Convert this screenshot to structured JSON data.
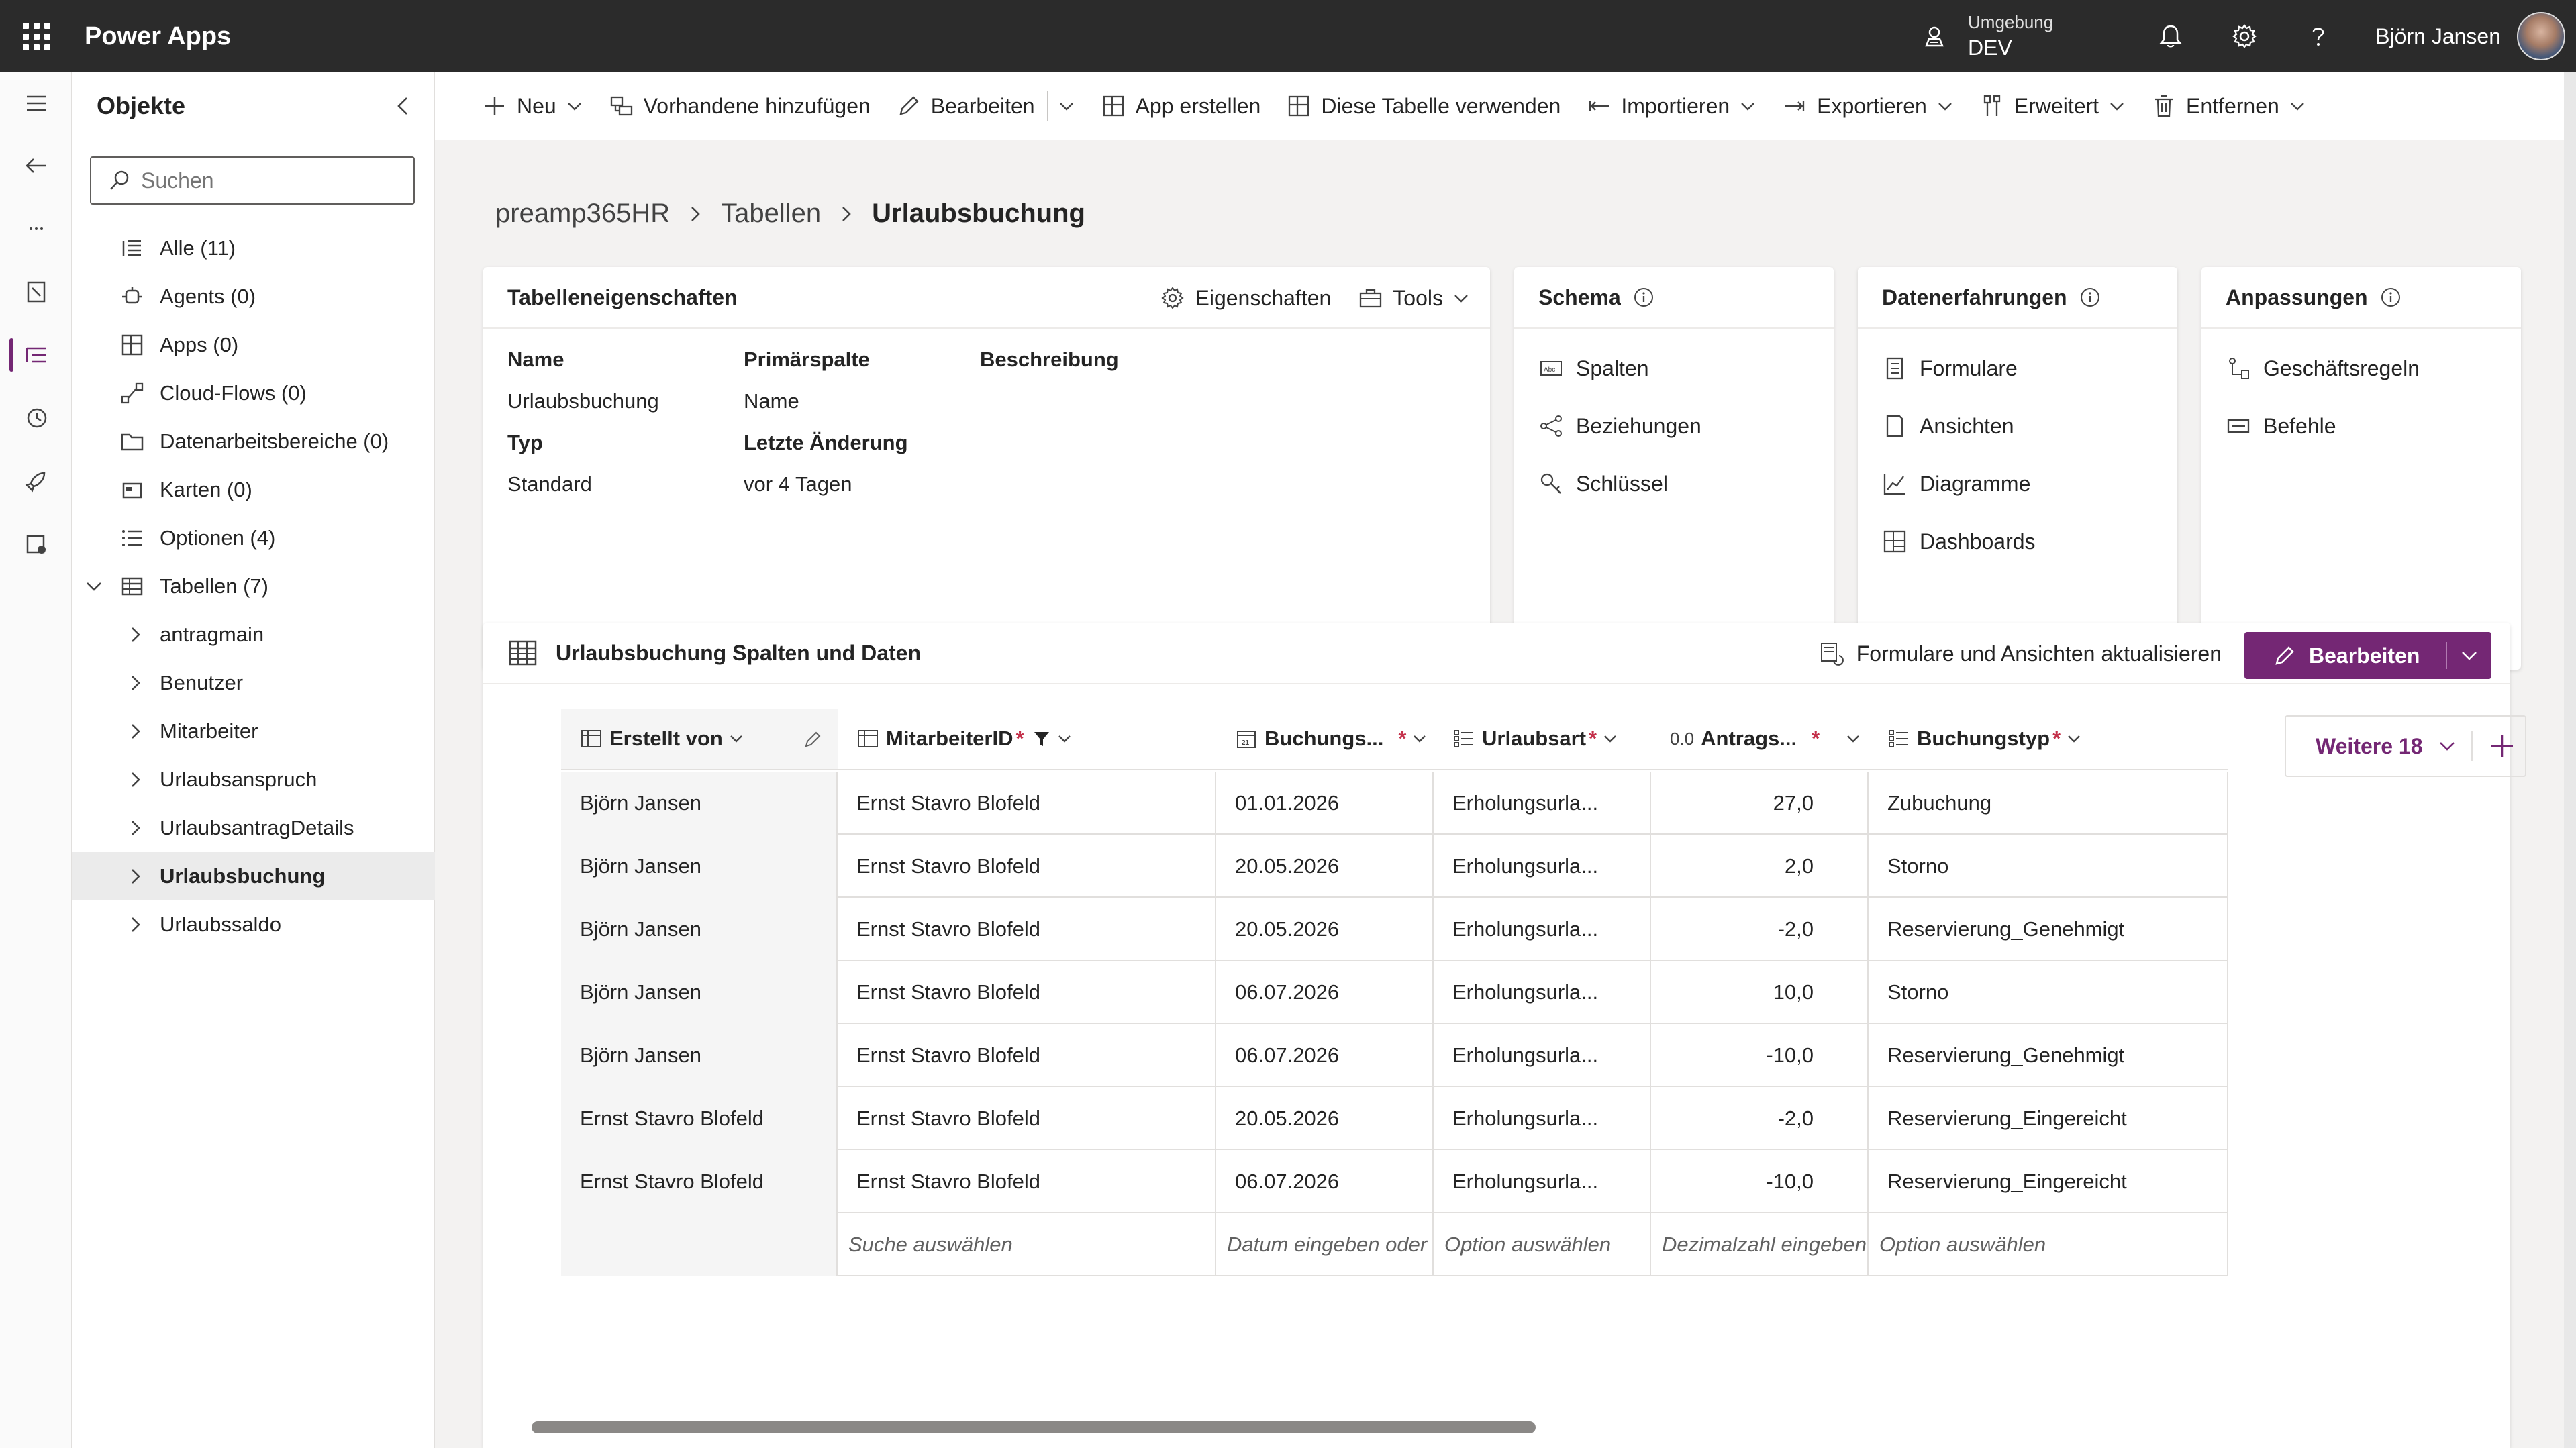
{
  "topbar": {
    "app_name": "Power Apps",
    "environment_label": "Umgebung",
    "environment_value": "DEV",
    "user_name": "Björn Jansen"
  },
  "objects_panel": {
    "title": "Objekte",
    "search_placeholder": "Suchen",
    "items": [
      {
        "label": "Alle (11)",
        "icon": "list-icon"
      },
      {
        "label": "Agents (0)",
        "icon": "agent-icon"
      },
      {
        "label": "Apps (0)",
        "icon": "apps-icon"
      },
      {
        "label": "Cloud-Flows (0)",
        "icon": "flow-icon"
      },
      {
        "label": "Datenarbeitsbereiche (0)",
        "icon": "folder-icon"
      },
      {
        "label": "Karten (0)",
        "icon": "card-icon"
      },
      {
        "label": "Optionen (4)",
        "icon": "options-icon"
      },
      {
        "label": "Tabellen (7)",
        "icon": "table-icon"
      }
    ],
    "tables": [
      "antragmain",
      "Benutzer",
      "Mitarbeiter",
      "Urlaubsanspruch",
      "UrlaubsantragDetails",
      "Urlaubsbuchung",
      "Urlaubssaldo"
    ],
    "selected_table": "Urlaubsbuchung"
  },
  "commandbar": {
    "new": "Neu",
    "add_existing": "Vorhandene hinzufügen",
    "edit": "Bearbeiten",
    "create_app": "App erstellen",
    "use_table": "Diese Tabelle verwenden",
    "import": "Importieren",
    "export": "Exportieren",
    "advanced": "Erweitert",
    "remove": "Entfernen"
  },
  "breadcrumb": {
    "root": "preamp365HR",
    "level1": "Tabellen",
    "current": "Urlaubsbuchung"
  },
  "properties": {
    "title": "Tabelleneigenschaften",
    "properties_action": "Eigenschaften",
    "tools_action": "Tools",
    "name_label": "Name",
    "name_value": "Urlaubsbuchung",
    "primary_label": "Primärspalte",
    "primary_value": "Name",
    "description_label": "Beschreibung",
    "type_label": "Typ",
    "type_value": "Standard",
    "modified_label": "Letzte Änderung",
    "modified_value": "vor 4 Tagen"
  },
  "schema": {
    "title": "Schema",
    "links": [
      "Spalten",
      "Beziehungen",
      "Schlüssel"
    ]
  },
  "data_experiences": {
    "title": "Datenerfahrungen",
    "links": [
      "Formulare",
      "Ansichten",
      "Diagramme",
      "Dashboards"
    ]
  },
  "customizations": {
    "title": "Anpassungen",
    "links": [
      "Geschäftsregeln",
      "Befehle"
    ]
  },
  "data_section": {
    "title": "Urlaubsbuchung Spalten und Daten",
    "refresh": "Formulare und Ansichten aktualisieren",
    "edit_button": "Bearbeiten",
    "more_columns": "Weitere 18",
    "columns": [
      {
        "label": "Erstellt von",
        "required": ""
      },
      {
        "label": "MitarbeiterID",
        "required": "*"
      },
      {
        "label": "Buchungs...",
        "required": "*"
      },
      {
        "label": "Urlaubsart",
        "required": "*"
      },
      {
        "label": "Antrags...",
        "required": "*"
      },
      {
        "label": "Buchungstyp",
        "required": "*"
      }
    ],
    "rows": [
      [
        "Björn Jansen",
        "Ernst Stavro Blofeld",
        "01.01.2026",
        "Erholungsurla...",
        "27,0",
        "Zubuchung"
      ],
      [
        "Björn Jansen",
        "Ernst Stavro Blofeld",
        "20.05.2026",
        "Erholungsurla...",
        "2,0",
        "Storno"
      ],
      [
        "Björn Jansen",
        "Ernst Stavro Blofeld",
        "20.05.2026",
        "Erholungsurla...",
        "-2,0",
        "Reservierung_Genehmigt"
      ],
      [
        "Björn Jansen",
        "Ernst Stavro Blofeld",
        "06.07.2026",
        "Erholungsurla...",
        "10,0",
        "Storno"
      ],
      [
        "Björn Jansen",
        "Ernst Stavro Blofeld",
        "06.07.2026",
        "Erholungsurla...",
        "-10,0",
        "Reservierung_Genehmigt"
      ],
      [
        "Ernst Stavro Blofeld",
        "Ernst Stavro Blofeld",
        "20.05.2026",
        "Erholungsurla...",
        "-2,0",
        "Reservierung_Eingereicht"
      ],
      [
        "Ernst Stavro Blofeld",
        "Ernst Stavro Blofeld",
        "06.07.2026",
        "Erholungsurla...",
        "-10,0",
        "Reservierung_Eingereicht"
      ]
    ],
    "new_row_placeholders": [
      "",
      "Suche auswählen",
      "Datum eingeben oder",
      "Option auswählen",
      "Dezimalzahl eingeben",
      "Option auswählen"
    ]
  },
  "colors": {
    "accent": "#742774",
    "topbar": "#2b2b2b",
    "required": "#c4314b"
  }
}
